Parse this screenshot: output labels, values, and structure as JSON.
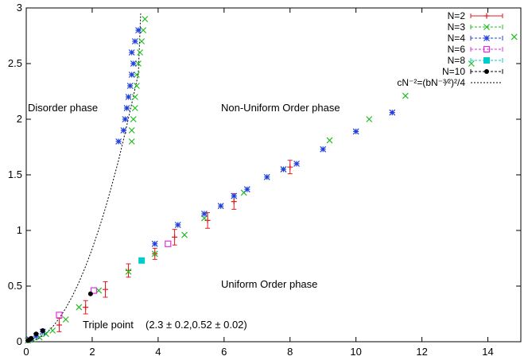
{
  "chart_data": {
    "type": "scatter",
    "title": "",
    "xlabel": "",
    "ylabel": "",
    "xlim": [
      0,
      15
    ],
    "ylim": [
      0,
      3
    ],
    "xticks": [
      0,
      2,
      4,
      6,
      8,
      10,
      12,
      14
    ],
    "yticks": [
      0,
      0.5,
      1,
      1.5,
      2,
      2.5,
      3
    ],
    "xtick_labels": [
      "0",
      "2",
      "4",
      "6",
      "8",
      "10",
      "12",
      "14"
    ],
    "ytick_labels": [
      "0",
      "0.5",
      "1",
      "1.5",
      "2",
      "2.5",
      "3"
    ],
    "grid": false,
    "legend_position": "top-right",
    "annotations": {
      "disorder": "Disorder phase",
      "nonuniform": "Non-Uniform Order phase",
      "uniform": "Uniform Order phase",
      "triple": "Triple point",
      "triple_value": "(2.3 ± 0.2,0.52 ± 0.02)"
    },
    "curve": {
      "name": "cN⁻²=(bN⁻³⁄²)²/4",
      "color": "#000000",
      "x": [
        0,
        0.2,
        0.4,
        0.6,
        0.8,
        1.0,
        1.2,
        1.4,
        1.6,
        1.8,
        2.0,
        2.2,
        2.4,
        2.6,
        2.8,
        3.0,
        3.2,
        3.4,
        3.47
      ],
      "y": [
        0,
        0.008,
        0.033,
        0.075,
        0.134,
        0.21,
        0.302,
        0.41,
        0.535,
        0.677,
        0.835,
        1.01,
        1.2,
        1.41,
        1.63,
        1.88,
        2.14,
        2.41,
        2.95
      ]
    },
    "series": [
      {
        "name": "N=2",
        "color": "#e41a1c",
        "marker": "plus",
        "x": [
          1.0,
          1.8,
          2.4,
          3.1,
          3.9,
          4.5,
          5.5,
          6.3,
          8.0
        ],
        "y": [
          0.15,
          0.31,
          0.47,
          0.64,
          0.79,
          0.94,
          1.09,
          1.26,
          1.57
        ],
        "yerr": [
          0.06,
          0.06,
          0.07,
          0.06,
          0.05,
          0.07,
          0.07,
          0.07,
          0.06
        ]
      },
      {
        "name": "N=3",
        "color": "#22bb22",
        "marker": "x",
        "x": [
          0.05,
          0.2,
          0.4,
          0.6,
          0.8,
          1.2,
          1.6,
          2.2,
          3.1,
          3.9,
          4.8,
          5.4,
          6.6,
          7.8,
          9.2,
          10.4,
          11.5,
          13.5,
          14.8,
          3.2,
          3.2,
          3.25,
          3.3,
          3.3,
          3.35,
          3.35,
          3.4,
          3.45,
          3.5,
          3.55,
          3.6
        ],
        "y": [
          0.01,
          0.02,
          0.04,
          0.07,
          0.1,
          0.2,
          0.31,
          0.46,
          0.63,
          0.79,
          0.96,
          1.11,
          1.34,
          1.55,
          1.81,
          2.0,
          2.21,
          2.5,
          2.74,
          1.8,
          1.9,
          2.0,
          2.1,
          2.2,
          2.3,
          2.4,
          2.5,
          2.6,
          2.7,
          2.8,
          2.9
        ]
      },
      {
        "name": "N=4",
        "color": "#1f3fdd",
        "marker": "star",
        "x": [
          0.1,
          0.3,
          0.5,
          3.9,
          4.6,
          5.4,
          5.9,
          6.3,
          6.7,
          7.3,
          7.8,
          8.2,
          9.0,
          10.0,
          11.1,
          2.8,
          2.95,
          3.0,
          3.05,
          3.1,
          3.15,
          3.2,
          3.25,
          3.2,
          3.3,
          3.4
        ],
        "y": [
          0.02,
          0.05,
          0.09,
          0.88,
          1.05,
          1.15,
          1.22,
          1.31,
          1.37,
          1.48,
          1.55,
          1.6,
          1.73,
          1.89,
          2.06,
          1.8,
          1.9,
          2.0,
          2.1,
          2.2,
          2.3,
          2.4,
          2.5,
          2.6,
          2.7,
          2.8
        ]
      },
      {
        "name": "N=6",
        "color": "#dd33dd",
        "marker": "square-open",
        "x": [
          1.0,
          2.05,
          4.3
        ],
        "y": [
          0.24,
          0.46,
          0.88
        ]
      },
      {
        "name": "N=8",
        "color": "#00cccc",
        "marker": "square-filled",
        "x": [
          3.5
        ],
        "y": [
          0.73
        ]
      },
      {
        "name": "N=10",
        "color": "#000000",
        "marker": "dot",
        "x": [
          0.05,
          0.1,
          0.15,
          0.3,
          0.5,
          1.95
        ],
        "y": [
          0.01,
          0.02,
          0.03,
          0.07,
          0.1,
          0.43
        ]
      }
    ]
  }
}
